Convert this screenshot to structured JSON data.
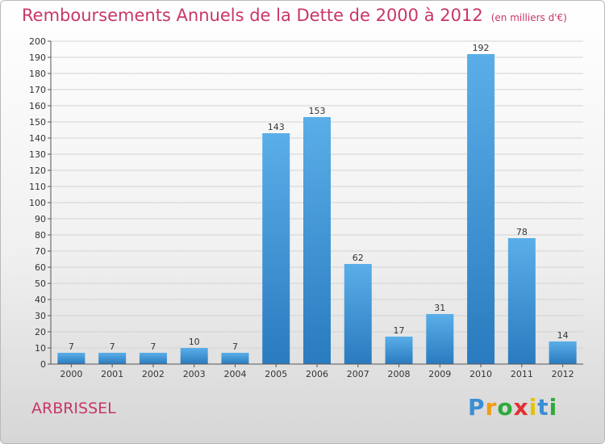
{
  "header": {
    "title": "Remboursements Annuels de la Dette de 2000 à 2012",
    "subtitle": "(en milliers d'€)"
  },
  "footer": {
    "place": "ARBRISSEL",
    "logo_text": "Proxiti",
    "logo_letters": [
      "P",
      "r",
      "o",
      "x",
      "i",
      "t",
      "i"
    ],
    "logo_colors": [
      "#3a8fd6",
      "#f39c12",
      "#2eaa3a",
      "#e03131",
      "#e6c200",
      "#3a8fd6",
      "#2eaa3a"
    ]
  },
  "colors": {
    "title": "#c8366a",
    "bar_top": "#5aaee8",
    "bar_bottom": "#2a7bbf",
    "axis": "#555555",
    "grid": "#d3d3d3"
  },
  "chart_data": {
    "type": "bar",
    "title": "Remboursements Annuels de la Dette de 2000 à 2012",
    "subtitle": "(en milliers d'€)",
    "categories": [
      "2000",
      "2001",
      "2002",
      "2003",
      "2004",
      "2005",
      "2006",
      "2007",
      "2008",
      "2009",
      "2010",
      "2011",
      "2012"
    ],
    "values": [
      7,
      7,
      7,
      10,
      7,
      143,
      153,
      62,
      17,
      31,
      192,
      78,
      14
    ],
    "ylim": [
      0,
      200
    ],
    "ytick_step": 10,
    "grid": true
  }
}
